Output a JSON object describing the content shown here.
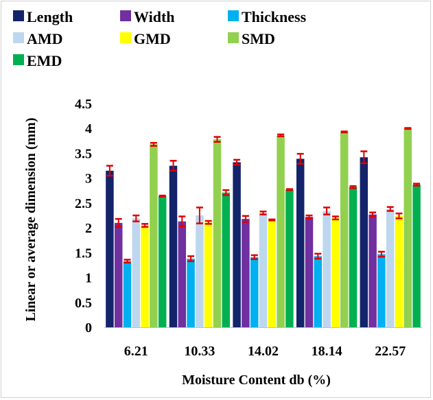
{
  "chart_data": {
    "type": "bar",
    "title": "",
    "xlabel": "Moisture Content db (%)",
    "ylabel": "Linear or average dimension (mm)",
    "ylim": [
      0,
      4.5
    ],
    "yticks": [
      "0",
      "0.5",
      "1",
      "1.5",
      "2",
      "2.5",
      "3",
      "3.5",
      "4",
      "4.5"
    ],
    "grid": false,
    "legend_position": "top",
    "categories": [
      "6.21",
      "10.33",
      "14.02",
      "18.14",
      "22.57"
    ],
    "series": [
      {
        "name": "Length",
        "color": "#13246b",
        "values": [
          3.15,
          3.25,
          3.32,
          3.39,
          3.42
        ],
        "errors": [
          0.1,
          0.1,
          0.05,
          0.1,
          0.12
        ]
      },
      {
        "name": "Width",
        "color": "#7030a0",
        "values": [
          2.1,
          2.13,
          2.18,
          2.22,
          2.27
        ],
        "errors": [
          0.08,
          0.1,
          0.06,
          0.03,
          0.04
        ]
      },
      {
        "name": "Thickness",
        "color": "#00b0f0",
        "values": [
          1.33,
          1.38,
          1.41,
          1.43,
          1.47
        ],
        "errors": [
          0.03,
          0.05,
          0.04,
          0.05,
          0.05
        ]
      },
      {
        "name": "AMD",
        "color": "#bdd7ee",
        "values": [
          2.19,
          2.25,
          2.3,
          2.34,
          2.38
        ],
        "errors": [
          0.06,
          0.16,
          0.03,
          0.07,
          0.04
        ]
      },
      {
        "name": "GMD",
        "color": "#ffff00",
        "values": [
          2.05,
          2.11,
          2.16,
          2.2,
          2.24
        ],
        "errors": [
          0.03,
          0.03,
          0.01,
          0.03,
          0.05
        ]
      },
      {
        "name": "SMD",
        "color": "#92d050",
        "values": [
          3.68,
          3.78,
          3.86,
          3.93,
          4.0
        ],
        "errors": [
          0.03,
          0.05,
          0.02,
          0.01,
          0.01
        ]
      },
      {
        "name": "EMD",
        "color": "#00b050",
        "values": [
          2.64,
          2.71,
          2.77,
          2.82,
          2.87
        ],
        "errors": [
          0.01,
          0.05,
          0.01,
          0.02,
          0.02
        ]
      }
    ],
    "error_bar_color": "#e00000"
  }
}
